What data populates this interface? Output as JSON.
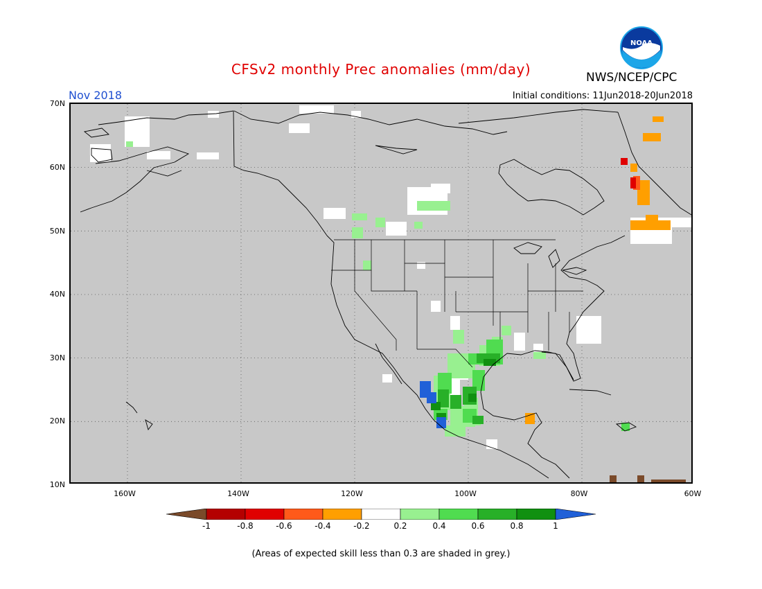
{
  "header": {
    "title": "CFSv2 monthly Prec anomalies (mm/day)",
    "month": "Nov 2018",
    "initial_conditions": "Initial conditions: 11Jun2018-20Jun2018",
    "agency": "NWS/NCEP/CPC",
    "logo_text": "NOAA"
  },
  "axes": {
    "lat_labels": [
      "70N",
      "60N",
      "50N",
      "40N",
      "30N",
      "20N",
      "10N"
    ],
    "lon_labels": [
      "160W",
      "140W",
      "120W",
      "100W",
      "80W",
      "60W"
    ]
  },
  "colorbar": {
    "labels": [
      "-1",
      "-0.8",
      "-0.6",
      "-0.4",
      "-0.2",
      "0.2",
      "0.4",
      "0.6",
      "0.8",
      "1"
    ],
    "colors": [
      "#7a4a2a",
      "#b40000",
      "#e00000",
      "#ff5a1a",
      "#ff9f00",
      "#ffffff",
      "#98f090",
      "#50dc50",
      "#28b028",
      "#109010",
      "#2060d8"
    ]
  },
  "footnote": "(Areas of expected skill less than 0.3 are shaded in grey.)",
  "colors": {
    "grey_mask": "#c8c8c8",
    "title": "#e00000",
    "month": "#2050d0"
  }
}
